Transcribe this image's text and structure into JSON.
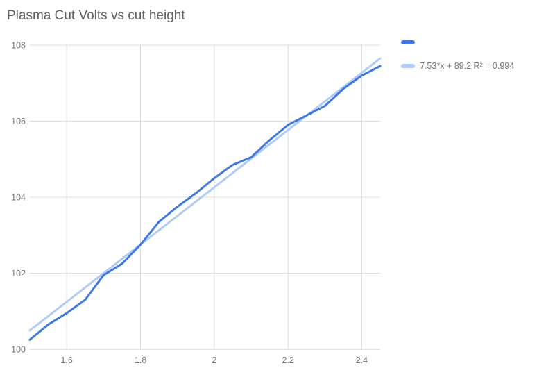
{
  "title": "Plasma Cut Volts vs cut height",
  "colors": {
    "series": "#3d78e8",
    "trend": "#aecbfa",
    "grid": "#dadce0",
    "baseline": "#cccccc",
    "axis_text": "#757575",
    "title_text": "#616161",
    "background": "#ffffff"
  },
  "legend": {
    "series_label": "",
    "trend_label": "7.53*x + 89.2 R² = 0.994"
  },
  "chart_data": {
    "type": "line",
    "title": "Plasma Cut Volts vs cut height",
    "xlabel": "",
    "ylabel": "",
    "xlim": [
      1.5,
      2.45
    ],
    "ylim": [
      100,
      108
    ],
    "grid": true,
    "legend_position": "right",
    "x_ticks": {
      "values": [
        1.6,
        1.8,
        2.0,
        2.2,
        2.4
      ],
      "labels": [
        "1.6",
        "1.8",
        "2",
        "2.2",
        "2.4"
      ]
    },
    "y_ticks": {
      "values": [
        100,
        102,
        104,
        106,
        108
      ],
      "labels": [
        "100",
        "102",
        "104",
        "106",
        "108"
      ]
    },
    "series": [
      {
        "name": "",
        "color": "#3d78e8",
        "x": [
          1.5,
          1.55,
          1.6,
          1.65,
          1.7,
          1.75,
          1.8,
          1.85,
          1.9,
          1.95,
          2.0,
          2.05,
          2.1,
          2.15,
          2.2,
          2.25,
          2.3,
          2.35,
          2.4,
          2.45
        ],
        "y": [
          100.25,
          100.65,
          100.95,
          101.3,
          101.95,
          102.25,
          102.75,
          103.35,
          103.75,
          104.1,
          104.5,
          104.85,
          105.05,
          105.5,
          105.9,
          106.15,
          106.4,
          106.85,
          107.2,
          107.45
        ]
      }
    ],
    "trendline": {
      "label": "7.53*x + 89.2 R² = 0.994",
      "slope": 7.53,
      "intercept": 89.2,
      "r2": 0.994,
      "color": "#aecbfa",
      "x_range": [
        1.5,
        2.45
      ]
    }
  }
}
